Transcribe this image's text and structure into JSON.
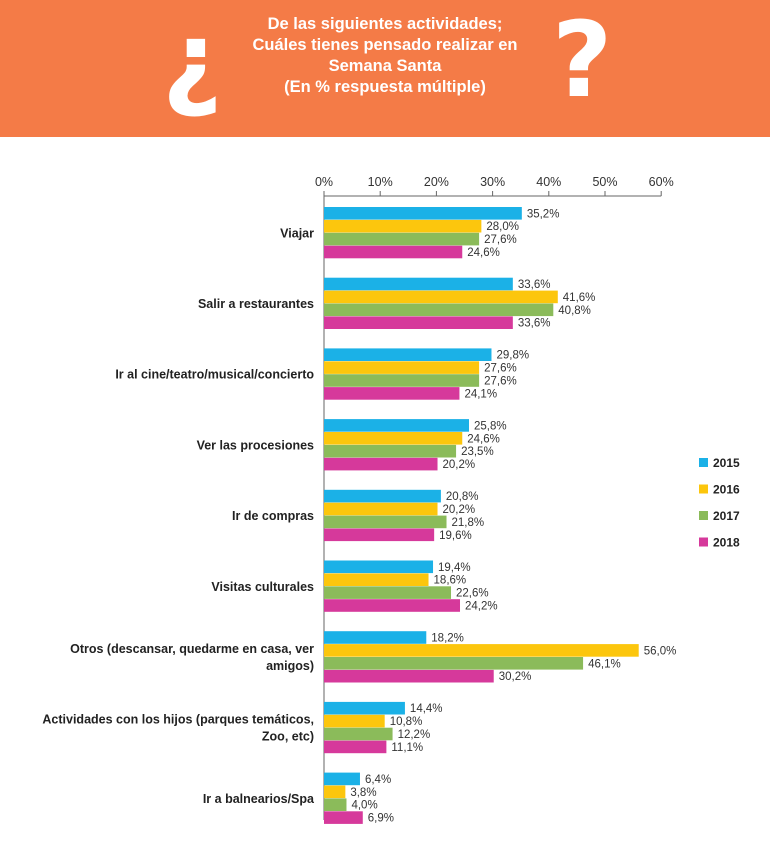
{
  "header": {
    "title_lines": [
      "De las siguientes actividades;",
      "Cuáles tienes pensado realizar en",
      "Semana Santa",
      "(En % respuesta múltiple)"
    ],
    "open_mark": "¿",
    "close_mark": "?",
    "background_color": "#f47b47"
  },
  "chart_data": {
    "type": "bar",
    "orientation": "horizontal",
    "title": "De las siguientes actividades; Cuáles tienes pensado realizar en Semana Santa (En % respuesta múltiple)",
    "xlim": [
      0,
      60
    ],
    "x_ticks": [
      "0%",
      "10%",
      "20%",
      "30%",
      "40%",
      "50%",
      "60%"
    ],
    "x_tick_values": [
      0,
      10,
      20,
      30,
      40,
      50,
      60
    ],
    "grid": false,
    "legend_position": "right",
    "categories": [
      "Viajar",
      "Salir a restaurantes",
      "Ir al cine/teatro/musical/concierto",
      "Ver las procesiones",
      "Ir de compras",
      "Visitas culturales",
      "Otros (descansar, quedarme en casa, ver amigos)",
      "Actividades con los hijos (parques temáticos, Zoo, etc)",
      "Ir a balnearios/Spa"
    ],
    "category_label_lines": [
      [
        "Viajar"
      ],
      [
        "Salir a restaurantes"
      ],
      [
        "Ir al cine/teatro/musical/concierto"
      ],
      [
        "Ver las procesiones"
      ],
      [
        "Ir de compras"
      ],
      [
        "Visitas culturales"
      ],
      [
        "Otros (descansar, quedarme en casa, ver",
        "amigos)"
      ],
      [
        "Actividades con los hijos (parques temáticos,",
        "Zoo, etc)"
      ],
      [
        "Ir a balnearios/Spa"
      ]
    ],
    "series": [
      {
        "name": "2015",
        "color": "#1bb1e7",
        "values": [
          35.2,
          33.6,
          29.8,
          25.8,
          20.8,
          19.4,
          18.2,
          14.4,
          6.4
        ],
        "labels": [
          "35,2%",
          "33,6%",
          "29,8%",
          "25,8%",
          "20,8%",
          "19,4%",
          "18,2%",
          "14,4%",
          "6,4%"
        ]
      },
      {
        "name": "2016",
        "color": "#fcc60d",
        "values": [
          28.0,
          41.6,
          27.6,
          24.6,
          20.2,
          18.6,
          56.0,
          10.8,
          3.8
        ],
        "labels": [
          "28,0%",
          "41,6%",
          "27,6%",
          "24,6%",
          "20,2%",
          "18,6%",
          "56,0%",
          "10,8%",
          "3,8%"
        ]
      },
      {
        "name": "2017",
        "color": "#8bbb5a",
        "values": [
          27.6,
          40.8,
          27.6,
          23.5,
          21.8,
          22.6,
          46.1,
          12.2,
          4.0
        ],
        "labels": [
          "27,6%",
          "40,8%",
          "27,6%",
          "23,5%",
          "21,8%",
          "22,6%",
          "46,1%",
          "12,2%",
          "4,0%"
        ]
      },
      {
        "name": "2018",
        "color": "#d6399b",
        "values": [
          24.6,
          33.6,
          24.1,
          20.2,
          19.6,
          24.2,
          30.2,
          11.1,
          6.9
        ],
        "labels": [
          "24,6%",
          "33,6%",
          "24,1%",
          "20,2%",
          "19,6%",
          "24,2%",
          "30,2%",
          "11,1%",
          "6,9%"
        ]
      }
    ]
  }
}
